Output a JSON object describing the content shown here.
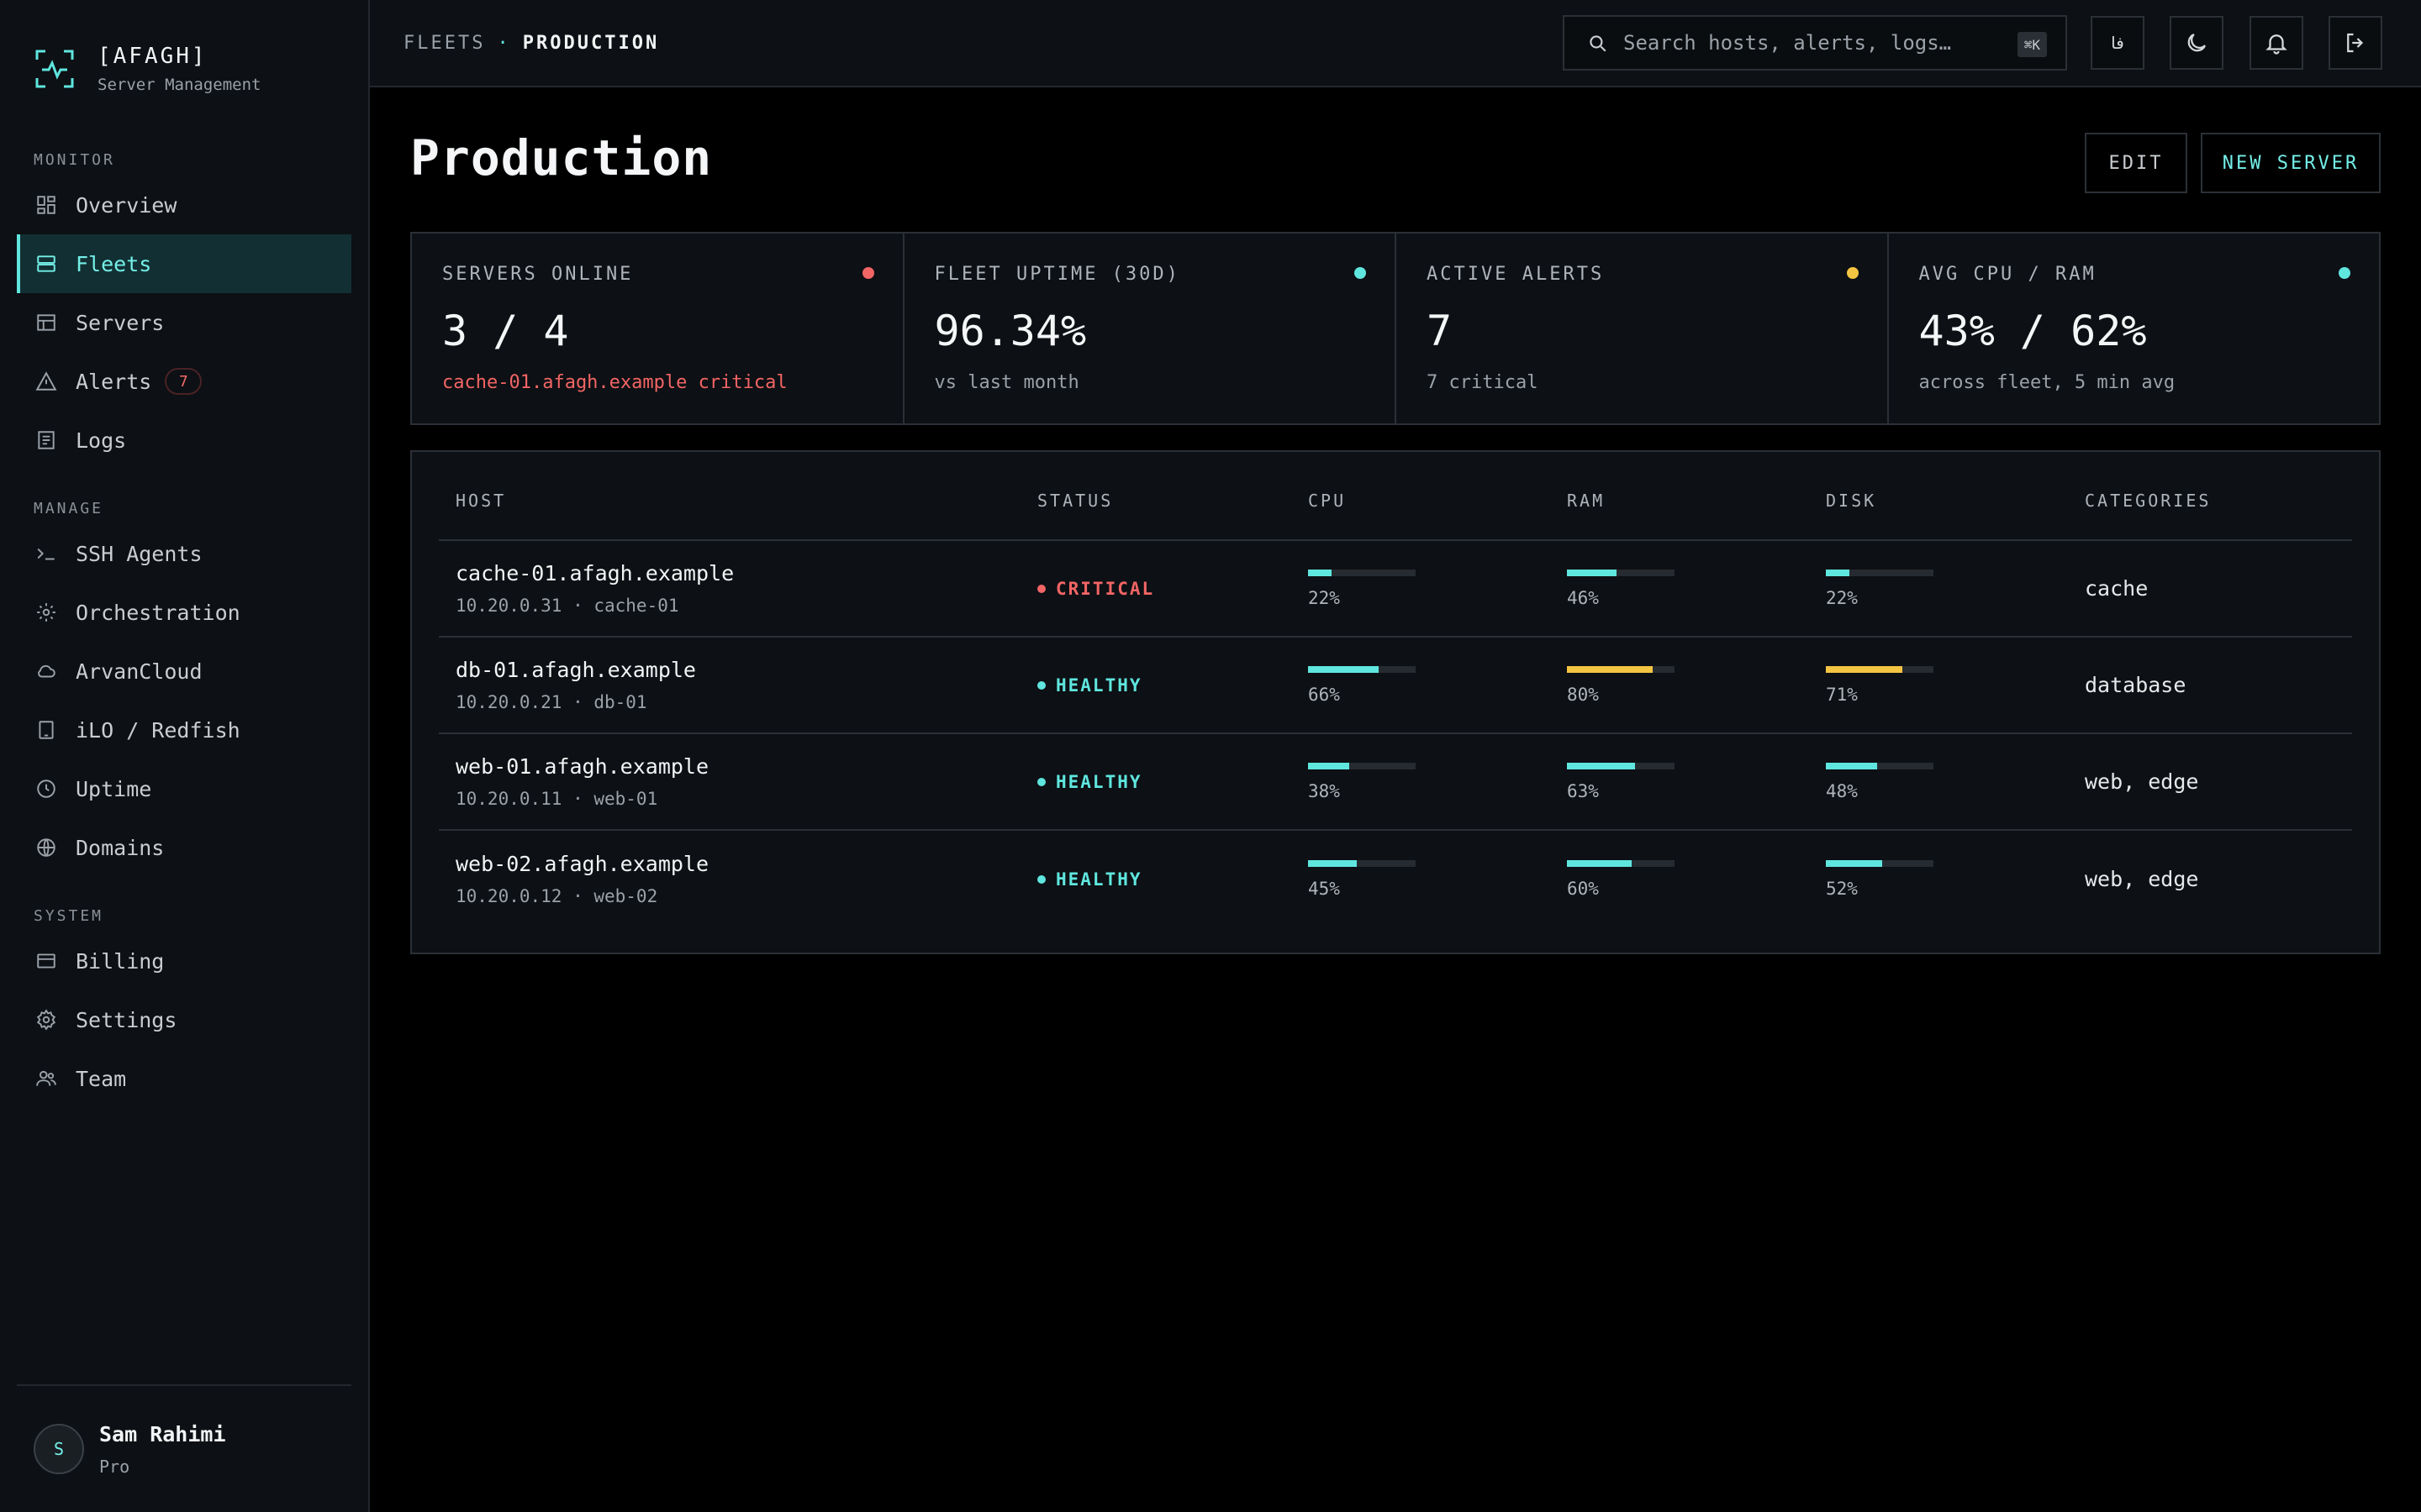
{
  "brand": {
    "name": "[AFAGH]",
    "subtitle": "Server Management"
  },
  "nav": {
    "sections": [
      {
        "title": "MONITOR",
        "items": [
          {
            "label": "Overview",
            "icon": "grid-icon"
          },
          {
            "label": "Fleets",
            "icon": "server-stack-icon",
            "active": true
          },
          {
            "label": "Servers",
            "icon": "table-icon"
          },
          {
            "label": "Alerts",
            "icon": "warning-icon",
            "badge": "7"
          },
          {
            "label": "Logs",
            "icon": "document-icon"
          }
        ]
      },
      {
        "title": "MANAGE",
        "items": [
          {
            "label": "SSH Agents",
            "icon": "terminal-icon"
          },
          {
            "label": "Orchestration",
            "icon": "sun-network-icon"
          },
          {
            "label": "ArvanCloud",
            "icon": "cloud-icon"
          },
          {
            "label": "iLO / Redfish",
            "icon": "tablet-icon"
          },
          {
            "label": "Uptime",
            "icon": "clock-icon"
          },
          {
            "label": "Domains",
            "icon": "globe-icon"
          }
        ]
      },
      {
        "title": "SYSTEM",
        "items": [
          {
            "label": "Billing",
            "icon": "credit-card-icon"
          },
          {
            "label": "Settings",
            "icon": "gear-icon"
          },
          {
            "label": "Team",
            "icon": "users-icon"
          }
        ]
      }
    ]
  },
  "user": {
    "initial": "S",
    "name": "Sam Rahimi",
    "plan": "Pro"
  },
  "topbar": {
    "breadcrumb_parent": "FLEETS",
    "breadcrumb_sep": "·",
    "breadcrumb_current": "PRODUCTION",
    "search_placeholder": "Search hosts, alerts, logs…",
    "search_shortcut": "⌘K",
    "lang_label": "فا"
  },
  "page": {
    "title": "Production",
    "edit_label": "EDIT",
    "new_label": "NEW SERVER"
  },
  "stats": [
    {
      "label": "SERVERS ONLINE",
      "value": "3 / 4",
      "sub": "cache-01.afagh.example critical",
      "dot": "#f26565",
      "critical": true
    },
    {
      "label": "FLEET UPTIME (30D)",
      "value": "96.34%",
      "sub": "vs last month",
      "dot": "#5fe6df"
    },
    {
      "label": "ACTIVE ALERTS",
      "value": "7",
      "sub": "7 critical",
      "dot": "#f4c542"
    },
    {
      "label": "AVG CPU / RAM",
      "value": "43% / 62%",
      "sub": "across fleet, 5 min avg",
      "dot": "#5fe6df"
    }
  ],
  "table": {
    "headers": [
      "HOST",
      "STATUS",
      "CPU",
      "RAM",
      "DISK",
      "CATEGORIES"
    ],
    "rows": [
      {
        "host": "cache-01.afagh.example",
        "meta": "10.20.0.31 · cache-01",
        "status": "CRITICAL",
        "status_color": "#f26565",
        "cpu": 22,
        "ram": 46,
        "disk": 22,
        "categories": "cache"
      },
      {
        "host": "db-01.afagh.example",
        "meta": "10.20.0.21 · db-01",
        "status": "HEALTHY",
        "status_color": "#5fe6df",
        "cpu": 66,
        "ram": 80,
        "disk": 71,
        "categories": "database"
      },
      {
        "host": "web-01.afagh.example",
        "meta": "10.20.0.11 · web-01",
        "status": "HEALTHY",
        "status_color": "#5fe6df",
        "cpu": 38,
        "ram": 63,
        "disk": 48,
        "categories": "web, edge"
      },
      {
        "host": "web-02.afagh.example",
        "meta": "10.20.0.12 · web-02",
        "status": "HEALTHY",
        "status_color": "#5fe6df",
        "cpu": 45,
        "ram": 60,
        "disk": 52,
        "categories": "web, edge"
      }
    ]
  },
  "colors": {
    "accent": "#5fe6df",
    "warning": "#f4c542",
    "critical": "#f26565"
  }
}
